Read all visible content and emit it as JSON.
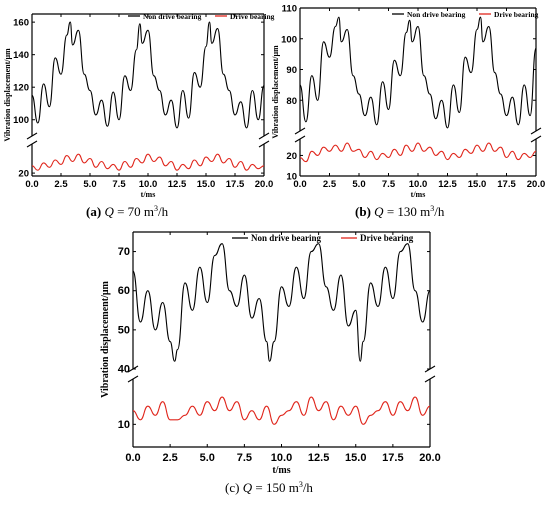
{
  "figure": {
    "captions": [
      {
        "letter": "a",
        "rest": " = 70 m",
        "sup": "3",
        "tail": "/h"
      },
      {
        "letter": "b",
        "rest": " = 130 m",
        "sup": "3",
        "tail": "/h"
      },
      {
        "letter": "c",
        "rest": " = 150 m",
        "sup": "3",
        "tail": "/h"
      }
    ]
  },
  "chart_data": [
    {
      "id": "a",
      "type": "line",
      "xlabel": "t/ms",
      "ylabel": "Vibration displacement/μm",
      "xlim": [
        0,
        20
      ],
      "x_ticks": [
        "0.0",
        "2.5",
        "5.0",
        "7.5",
        "10.0",
        "12.5",
        "15.0",
        "17.5",
        "20.0"
      ],
      "y_broken_axis": true,
      "y_upper_range": [
        90,
        165
      ],
      "y_upper_ticks": [
        "100",
        "120",
        "140",
        "160"
      ],
      "y_lower_range": [
        18,
        40
      ],
      "y_lower_ticks": [
        "20"
      ],
      "series": [
        {
          "name": "Non drive bearing",
          "color": "#000000",
          "segment": "upper",
          "x": [
            0,
            0.5,
            1,
            1.5,
            2,
            2.5,
            3,
            3.3,
            3.5,
            4,
            4.5,
            5,
            5.5,
            6,
            6.5,
            7,
            7.5,
            8,
            8.5,
            9,
            9.3,
            9.5,
            10,
            10.5,
            11,
            11.5,
            12,
            12.5,
            13,
            13.5,
            14,
            14.5,
            15,
            15.3,
            15.5,
            16,
            16.5,
            17,
            17.5,
            18,
            18.5,
            19,
            19.5,
            20
          ],
          "y": [
            115,
            98,
            122,
            108,
            138,
            128,
            152,
            160,
            146,
            155,
            128,
            118,
            103,
            112,
            96,
            117,
            100,
            127,
            118,
            143,
            159,
            147,
            155,
            127,
            118,
            103,
            112,
            95,
            118,
            101,
            129,
            120,
            145,
            160,
            147,
            156,
            128,
            118,
            103,
            111,
            95,
            118,
            100,
            121
          ]
        },
        {
          "name": "Drive bearing",
          "color": "#e0261c",
          "segment": "lower",
          "x": [
            0,
            0.5,
            1,
            1.5,
            2,
            2.5,
            3,
            3.5,
            4,
            4.5,
            5,
            5.5,
            6,
            6.5,
            7,
            7.5,
            8,
            8.5,
            9,
            9.5,
            10,
            10.5,
            11,
            11.5,
            12,
            12.5,
            13,
            13.5,
            14,
            14.5,
            15,
            15.5,
            16,
            16.5,
            17,
            17.5,
            18,
            18.5,
            19,
            19.5,
            20
          ],
          "y": [
            25,
            22,
            27,
            24,
            29,
            26,
            32,
            28,
            33,
            27,
            30,
            24,
            28,
            23,
            26,
            22,
            28,
            24,
            30,
            27,
            33,
            28,
            31,
            25,
            28,
            22,
            26,
            23,
            29,
            25,
            31,
            28,
            33,
            27,
            30,
            24,
            28,
            22,
            26,
            23,
            25
          ]
        }
      ]
    },
    {
      "id": "b",
      "type": "line",
      "xlabel": "t/ms",
      "ylabel": "Vibration displacement/μm",
      "xlim": [
        0,
        20
      ],
      "x_ticks": [
        "0.0",
        "2.5",
        "5.0",
        "7.5",
        "10.0",
        "12.5",
        "15.0",
        "17.5",
        "20.0"
      ],
      "y_broken_axis": true,
      "y_upper_range": [
        70,
        110
      ],
      "y_upper_ticks": [
        "80",
        "90",
        "100",
        "110"
      ],
      "y_lower_range": [
        10,
        28
      ],
      "y_lower_ticks": [
        "10",
        "20"
      ],
      "series": [
        {
          "name": "Non drive bearing",
          "color": "#000000",
          "segment": "upper",
          "x": [
            0,
            0.5,
            1,
            1.5,
            2,
            2.5,
            3,
            3.3,
            3.5,
            4,
            4.5,
            5,
            5.5,
            6,
            6.5,
            7,
            7.5,
            8,
            8.5,
            9,
            9.3,
            9.5,
            10,
            10.5,
            11,
            11.5,
            12,
            12.5,
            13,
            13.5,
            14,
            14.5,
            15,
            15.3,
            15.5,
            16,
            16.5,
            17,
            17.5,
            18,
            18.5,
            19,
            19.5,
            20
          ],
          "y": [
            85,
            73,
            88,
            80,
            99,
            94,
            104,
            107,
            99,
            103,
            88,
            82,
            75,
            81,
            72,
            86,
            77,
            93,
            88,
            102,
            106,
            99,
            104,
            88,
            82,
            74,
            80,
            71,
            85,
            76,
            94,
            89,
            103,
            107,
            99,
            104,
            89,
            82,
            75,
            81,
            72,
            85,
            75,
            97
          ]
        },
        {
          "name": "Drive bearing",
          "color": "#e0261c",
          "segment": "lower",
          "x": [
            0,
            0.5,
            1,
            1.5,
            2,
            2.5,
            3,
            3.5,
            4,
            4.5,
            5,
            5.5,
            6,
            6.5,
            7,
            7.5,
            8,
            8.5,
            9,
            9.5,
            10,
            10.5,
            11,
            11.5,
            12,
            12.5,
            13,
            13.5,
            14,
            14.5,
            15,
            15.5,
            16,
            16.5,
            17,
            17.5,
            18,
            18.5,
            19,
            19.5,
            20
          ],
          "y": [
            19,
            17,
            22,
            20,
            24,
            22,
            25,
            22,
            26,
            22,
            23,
            19,
            22,
            18,
            21,
            19,
            23,
            20,
            25,
            22,
            26,
            22,
            24,
            20,
            22,
            18,
            21,
            19,
            23,
            21,
            25,
            22,
            26,
            22,
            24,
            19,
            22,
            18,
            21,
            19,
            22
          ]
        }
      ]
    },
    {
      "id": "c",
      "type": "line",
      "xlabel": "t/ms",
      "ylabel": "Vibration displacement/μm",
      "xlim": [
        0,
        20
      ],
      "x_ticks": [
        "0.0",
        "2.5",
        "5.0",
        "7.5",
        "10.0",
        "12.5",
        "15.0",
        "17.5",
        "20.0"
      ],
      "y_broken_axis": true,
      "y_upper_range": [
        40,
        75
      ],
      "y_upper_ticks": [
        "40",
        "50",
        "60",
        "70"
      ],
      "y_lower_range": [
        5,
        20
      ],
      "y_lower_ticks": [
        "10"
      ],
      "series": [
        {
          "name": "Non drive bearing",
          "color": "#000000",
          "segment": "upper",
          "x": [
            0,
            0.5,
            1,
            1.5,
            2,
            2.5,
            2.8,
            3,
            3.5,
            4,
            4.5,
            5,
            5.5,
            6,
            6.5,
            7,
            7.5,
            8,
            8.5,
            9,
            9.2,
            9.5,
            10,
            10.5,
            11,
            11.5,
            12,
            12.5,
            13,
            13.5,
            14,
            14.5,
            15,
            15.3,
            15.5,
            16,
            16.5,
            17,
            17.5,
            18,
            18.5,
            19,
            19.5,
            20
          ],
          "y": [
            65,
            52,
            60,
            50,
            57,
            47,
            42,
            45,
            62,
            55,
            66,
            57,
            69,
            72,
            60,
            56,
            64,
            53,
            58,
            47,
            42,
            47,
            61,
            56,
            66,
            58,
            70,
            72,
            61,
            55,
            64,
            51,
            55,
            42,
            47,
            62,
            56,
            66,
            58,
            70,
            72,
            60,
            52,
            60
          ]
        },
        {
          "name": "Drive bearing",
          "color": "#e0261c",
          "segment": "lower",
          "x": [
            0,
            0.5,
            1,
            1.5,
            2,
            2.5,
            3,
            3.5,
            4,
            4.5,
            5,
            5.5,
            6,
            6.5,
            7,
            7.5,
            8,
            8.5,
            9,
            9.5,
            10,
            10.5,
            11,
            11.5,
            12,
            12.5,
            13,
            13.5,
            14,
            14.5,
            15,
            15.5,
            16,
            16.5,
            17,
            17.5,
            18,
            18.5,
            19,
            19.5,
            20
          ],
          "y": [
            13,
            11,
            14,
            12,
            15,
            11,
            11,
            12,
            14,
            12,
            15,
            13,
            16,
            13,
            15,
            11,
            13,
            11,
            14,
            10,
            12,
            13,
            15,
            12,
            16,
            13,
            15,
            11,
            14,
            12,
            14,
            10,
            12,
            13,
            15,
            12,
            15,
            13,
            16,
            12,
            14
          ]
        }
      ]
    }
  ]
}
